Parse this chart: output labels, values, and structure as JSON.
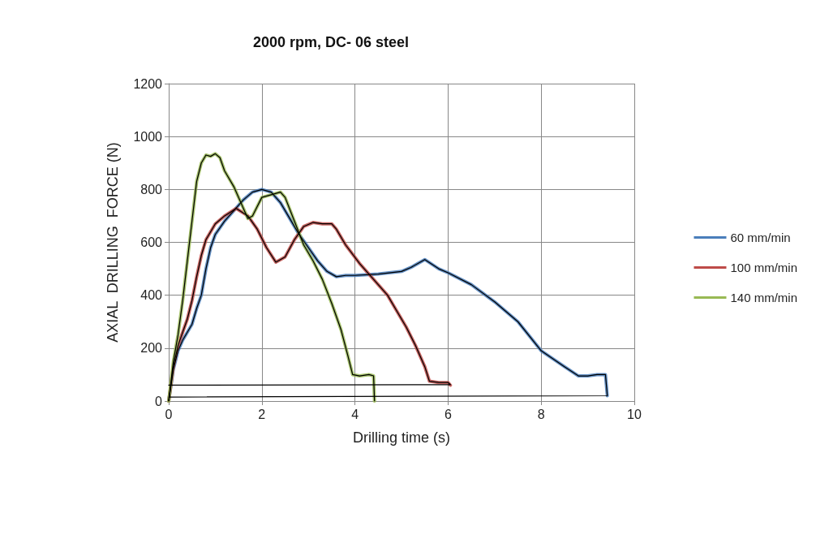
{
  "chart_data": {
    "type": "line",
    "title": "2000 rpm, DC- 06 steel",
    "xlabel": "Drilling time (s)",
    "ylabel": "AXIAL  DRILLING  FORCE (N)",
    "xlim": [
      0,
      10
    ],
    "xticks": [
      0,
      2,
      4,
      6,
      8,
      10
    ],
    "ylim": [
      0,
      1200
    ],
    "yticks": [
      0,
      200,
      400,
      600,
      800,
      1000,
      1200
    ],
    "grid": true,
    "legend": "right",
    "marker": "none",
    "line_style": "solid",
    "series": [
      {
        "name": "60 mm/min",
        "color": "#4a7ebb",
        "x": [
          0,
          0.1,
          0.2,
          0.3,
          0.4,
          0.5,
          0.6,
          0.7,
          0.8,
          0.9,
          1.0,
          1.2,
          1.4,
          1.6,
          1.8,
          2.0,
          2.2,
          2.4,
          2.6,
          2.8,
          3.0,
          3.2,
          3.4,
          3.6,
          3.8,
          4.0,
          4.5,
          5.0,
          5.2,
          5.5,
          5.8,
          6.0,
          6.5,
          7.0,
          7.5,
          8.0,
          8.5,
          8.8,
          9.0,
          9.2,
          9.38,
          9.42
        ],
        "values": [
          0,
          120,
          190,
          230,
          260,
          290,
          350,
          400,
          500,
          580,
          630,
          680,
          720,
          760,
          790,
          800,
          790,
          750,
          690,
          630,
          580,
          530,
          490,
          470,
          475,
          475,
          480,
          490,
          505,
          535,
          500,
          485,
          440,
          375,
          300,
          190,
          130,
          95,
          95,
          100,
          100,
          20
        ]
      },
      {
        "name": "100 mm/min",
        "color": "#be4b48",
        "x": [
          0,
          0.1,
          0.2,
          0.3,
          0.4,
          0.5,
          0.6,
          0.7,
          0.8,
          0.9,
          1.0,
          1.2,
          1.45,
          1.7,
          1.9,
          2.1,
          2.3,
          2.5,
          2.7,
          2.9,
          3.1,
          3.3,
          3.5,
          3.6,
          3.8,
          4.1,
          4.3,
          4.5,
          4.7,
          4.9,
          5.1,
          5.3,
          5.5,
          5.6,
          5.8,
          6.0,
          6.05
        ],
        "values": [
          0,
          130,
          210,
          260,
          310,
          380,
          470,
          550,
          610,
          640,
          670,
          700,
          728,
          700,
          650,
          580,
          525,
          545,
          610,
          660,
          675,
          670,
          670,
          650,
          590,
          520,
          480,
          440,
          400,
          340,
          280,
          210,
          130,
          75,
          70,
          70,
          60
        ]
      },
      {
        "name": "140 mm/min",
        "color": "#98b954",
        "x": [
          0,
          0.1,
          0.2,
          0.3,
          0.4,
          0.5,
          0.6,
          0.7,
          0.8,
          0.9,
          1.0,
          1.1,
          1.2,
          1.4,
          1.6,
          1.7,
          1.8,
          2.0,
          2.2,
          2.4,
          2.5,
          2.7,
          2.9,
          3.1,
          3.3,
          3.5,
          3.7,
          3.85,
          3.95,
          4.1,
          4.3,
          4.4,
          4.42
        ],
        "values": [
          0,
          150,
          250,
          380,
          530,
          680,
          830,
          900,
          930,
          925,
          935,
          920,
          870,
          810,
          730,
          690,
          700,
          770,
          780,
          790,
          770,
          680,
          590,
          530,
          460,
          370,
          270,
          170,
          100,
          95,
          100,
          95,
          0
        ]
      },
      {
        "color": "#000000",
        "x": [
          0,
          0.1,
          0.2,
          0.3,
          0.4,
          0.5,
          0.6,
          0.7,
          0.8,
          0.9,
          1.0,
          1.2,
          1.4,
          1.6,
          1.8,
          2.0,
          2.2,
          2.4,
          2.6,
          2.8,
          3.0,
          3.2,
          3.4,
          3.6,
          3.8,
          4.0,
          4.5,
          5.0,
          5.2,
          5.5,
          5.8,
          6.0,
          6.5,
          7.0,
          7.5,
          8.0,
          8.5,
          8.8,
          9.0,
          9.2,
          9.38,
          9.42,
          0
        ],
        "values": [
          0,
          120,
          190,
          230,
          260,
          290,
          350,
          400,
          500,
          580,
          630,
          680,
          720,
          760,
          790,
          800,
          790,
          750,
          690,
          630,
          580,
          530,
          490,
          470,
          475,
          475,
          480,
          490,
          505,
          535,
          500,
          485,
          440,
          375,
          300,
          190,
          130,
          95,
          95,
          100,
          100,
          20,
          15
        ]
      },
      {
        "color": "#000000",
        "x": [
          0,
          0.1,
          0.2,
          0.3,
          0.4,
          0.5,
          0.6,
          0.7,
          0.8,
          0.9,
          1.0,
          1.2,
          1.45,
          1.7,
          1.9,
          2.1,
          2.3,
          2.5,
          2.7,
          2.9,
          3.1,
          3.3,
          3.5,
          3.6,
          3.8,
          4.1,
          4.3,
          4.5,
          4.7,
          4.9,
          5.1,
          5.3,
          5.5,
          5.6,
          5.8,
          6.0,
          6.05,
          0
        ],
        "values": [
          0,
          130,
          210,
          260,
          310,
          380,
          470,
          550,
          610,
          640,
          670,
          700,
          728,
          700,
          650,
          580,
          525,
          545,
          610,
          660,
          675,
          670,
          670,
          650,
          590,
          520,
          480,
          440,
          400,
          340,
          280,
          210,
          130,
          75,
          70,
          70,
          62,
          60
        ]
      },
      {
        "color": "#000000",
        "x": [
          0,
          0.1,
          0.2,
          0.3,
          0.4,
          0.5,
          0.6,
          0.7,
          0.8,
          0.9,
          1.0,
          1.1,
          1.2,
          1.4,
          1.6,
          1.7,
          1.8,
          2.0,
          2.2,
          2.4,
          2.5,
          2.7,
          2.9,
          3.1,
          3.3,
          3.5,
          3.7,
          3.85,
          3.95,
          4.1,
          4.3,
          4.4,
          4.42
        ],
        "values": [
          0,
          150,
          250,
          380,
          530,
          680,
          830,
          900,
          930,
          925,
          935,
          920,
          870,
          810,
          730,
          690,
          700,
          770,
          780,
          790,
          770,
          680,
          590,
          530,
          460,
          370,
          270,
          170,
          100,
          95,
          100,
          95,
          0
        ]
      }
    ]
  }
}
